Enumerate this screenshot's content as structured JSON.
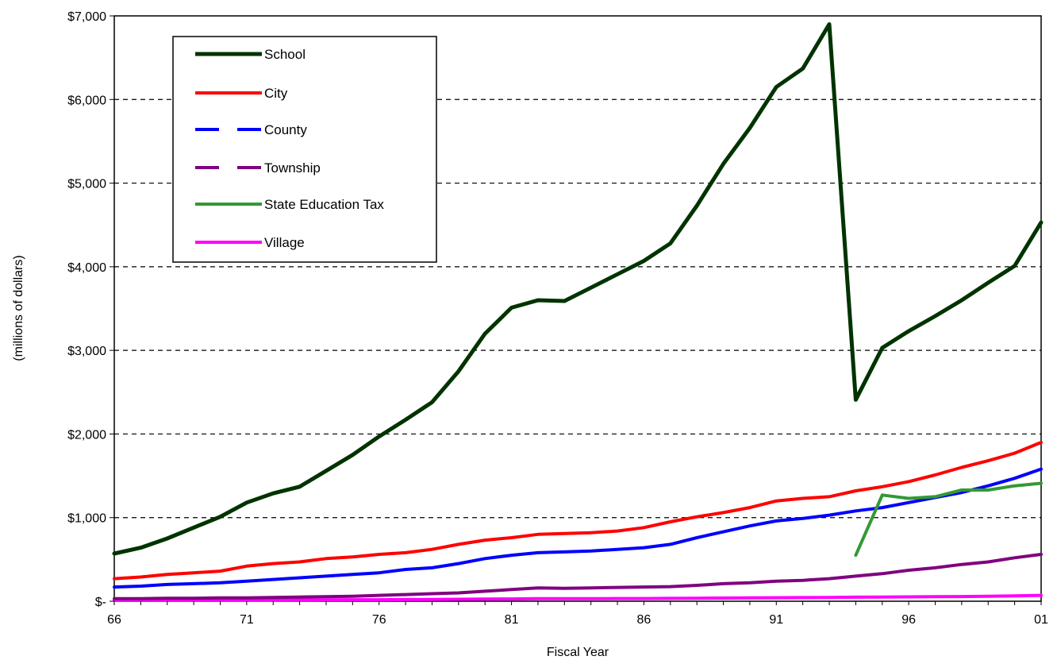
{
  "chart_data": {
    "type": "line",
    "title": "",
    "xlabel": "Fiscal Year",
    "ylabel": "(millions of dollars)",
    "x_categories": [
      "66",
      "67",
      "68",
      "69",
      "70",
      "71",
      "72",
      "73",
      "74",
      "75",
      "76",
      "77",
      "78",
      "79",
      "80",
      "81",
      "82",
      "83",
      "84",
      "85",
      "86",
      "87",
      "88",
      "89",
      "90",
      "91",
      "92",
      "93",
      "94",
      "95",
      "96",
      "97",
      "98",
      "99",
      "00",
      "01"
    ],
    "x_tick_labels": [
      "66",
      "71",
      "76",
      "81",
      "86",
      "91",
      "96",
      "01"
    ],
    "y_tick_labels": [
      "$-",
      "$1,000",
      "$2,000",
      "$3,000",
      "$4,000",
      "$5,000",
      "$6,000",
      "$7,000"
    ],
    "ylim": [
      0,
      7000
    ],
    "grid": "horizontal dashed",
    "legend_position": "top-left",
    "series": [
      {
        "name": "School",
        "color": "#003300",
        "dash": "solid",
        "width": 5,
        "values": [
          570,
          640,
          750,
          880,
          1010,
          1180,
          1290,
          1370,
          1560,
          1750,
          1970,
          2170,
          2380,
          2750,
          3200,
          3510,
          3600,
          3590,
          3750,
          3910,
          4070,
          4280,
          4730,
          5230,
          5660,
          6150,
          6370,
          6900,
          2410,
          3030,
          3230,
          3410,
          3600,
          3810,
          4010,
          4530
        ]
      },
      {
        "name": "City",
        "color": "#ff0000",
        "dash": "solid",
        "width": 4,
        "values": [
          270,
          290,
          320,
          340,
          360,
          420,
          450,
          470,
          510,
          530,
          560,
          580,
          620,
          680,
          730,
          760,
          800,
          810,
          820,
          840,
          880,
          950,
          1010,
          1060,
          1120,
          1200,
          1230,
          1250,
          1320,
          1370,
          1430,
          1510,
          1600,
          1680,
          1770,
          1900
        ]
      },
      {
        "name": "County",
        "color": "#0000ff",
        "dash": "dashed",
        "width": 4,
        "values": [
          170,
          180,
          200,
          210,
          220,
          240,
          260,
          280,
          300,
          320,
          340,
          380,
          400,
          450,
          510,
          550,
          580,
          590,
          600,
          620,
          640,
          680,
          760,
          830,
          900,
          960,
          990,
          1030,
          1080,
          1120,
          1180,
          1240,
          1300,
          1380,
          1470,
          1580
        ]
      },
      {
        "name": "Township",
        "color": "#800080",
        "dash": "dashed",
        "width": 4,
        "values": [
          30,
          30,
          35,
          35,
          40,
          40,
          45,
          50,
          55,
          60,
          70,
          80,
          90,
          100,
          120,
          140,
          160,
          155,
          160,
          165,
          170,
          175,
          190,
          210,
          220,
          240,
          250,
          270,
          300,
          330,
          370,
          400,
          440,
          470,
          520,
          560
        ]
      },
      {
        "name": "State Education Tax",
        "color": "#339933",
        "dash": "solid",
        "width": 4,
        "values": [
          null,
          null,
          null,
          null,
          null,
          null,
          null,
          null,
          null,
          null,
          null,
          null,
          null,
          null,
          null,
          null,
          null,
          null,
          null,
          null,
          null,
          null,
          null,
          null,
          null,
          null,
          null,
          null,
          550,
          1270,
          1230,
          1250,
          1330,
          1330,
          1380,
          1410
        ]
      },
      {
        "name": "Village",
        "color": "#ff00ff",
        "dash": "solid",
        "width": 4,
        "values": [
          10,
          10,
          10,
          12,
          12,
          14,
          14,
          15,
          16,
          18,
          18,
          20,
          22,
          24,
          26,
          28,
          30,
          30,
          30,
          32,
          32,
          34,
          36,
          38,
          40,
          42,
          44,
          46,
          48,
          50,
          52,
          54,
          56,
          60,
          65,
          70
        ]
      }
    ]
  }
}
